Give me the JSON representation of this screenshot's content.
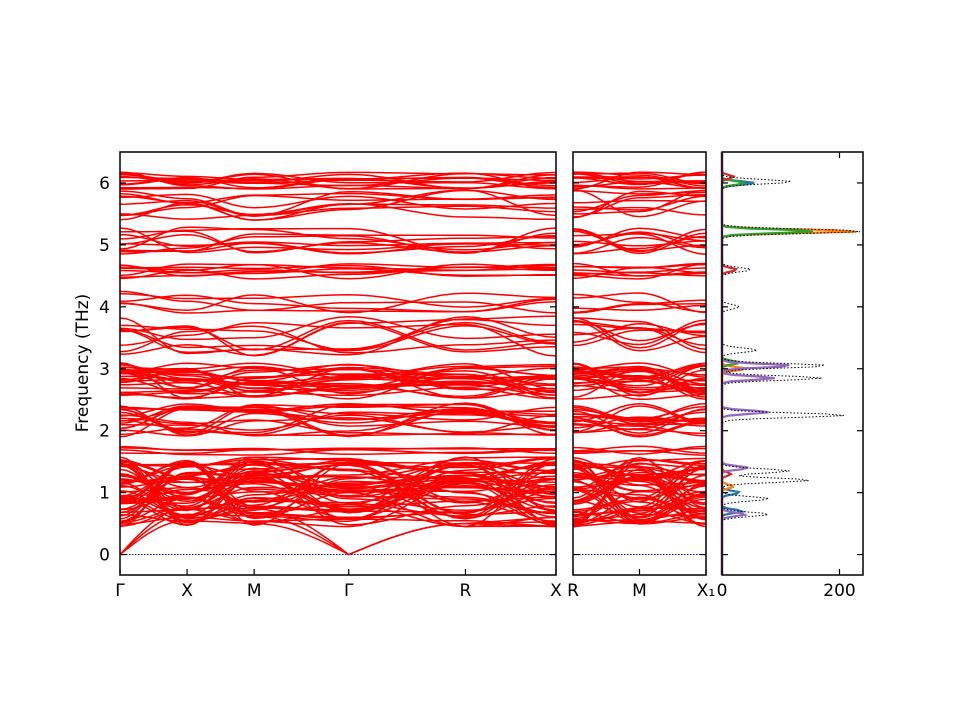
{
  "chart_data": {
    "type": "line",
    "title": "",
    "ylabel": "Frequency (THz)",
    "ylim": [
      -0.33,
      6.5
    ],
    "yticks": [
      "0",
      "1",
      "2",
      "3",
      "4",
      "5",
      "6"
    ],
    "panels": [
      {
        "name": "band-panel-1",
        "kind": "phonon_band_structure",
        "qpoints": [
          "Γ",
          "X",
          "M",
          "Γ",
          "R",
          "X"
        ],
        "qpoint_positions": [
          0.0,
          1.0,
          2.0,
          3.41,
          5.15,
          6.5
        ],
        "band_color": "#ff0000",
        "zero_line_color": "#0000cc"
      },
      {
        "name": "band-panel-2",
        "kind": "phonon_band_structure",
        "qpoints": [
          "R",
          "M",
          "X₁"
        ],
        "qpoint_positions": [
          0.0,
          1.0,
          2.0
        ],
        "band_color": "#ff0000",
        "zero_line_color": "#0000cc"
      }
    ],
    "dos": {
      "name": "partial-dos",
      "kind": "density_of_states",
      "xlim": [
        0,
        240
      ],
      "xticks": [
        "0",
        "200"
      ],
      "total_style": "dotted black",
      "total_peaks": [
        {
          "freq": 6.02,
          "height": 120
        },
        {
          "freq": 5.22,
          "height": 240
        },
        {
          "freq": 4.6,
          "height": 50
        },
        {
          "freq": 4.0,
          "height": 30
        },
        {
          "freq": 3.3,
          "height": 60
        },
        {
          "freq": 3.05,
          "height": 180
        },
        {
          "freq": 2.85,
          "height": 170
        },
        {
          "freq": 2.25,
          "height": 210
        },
        {
          "freq": 1.35,
          "height": 115
        },
        {
          "freq": 1.2,
          "height": 150
        },
        {
          "freq": 0.9,
          "height": 80
        },
        {
          "freq": 0.65,
          "height": 80
        }
      ],
      "partials": [
        {
          "color": "#1f77b4",
          "peaks": [
            {
              "freq": 6.0,
              "height": 55
            },
            {
              "freq": 1.0,
              "height": 30
            },
            {
              "freq": 0.7,
              "height": 35
            }
          ]
        },
        {
          "color": "#ff7f0e",
          "peaks": [
            {
              "freq": 5.22,
              "height": 235
            },
            {
              "freq": 3.0,
              "height": 40
            },
            {
              "freq": 1.1,
              "height": 20
            }
          ]
        },
        {
          "color": "#2ca02c",
          "peaks": [
            {
              "freq": 5.22,
              "height": 160
            },
            {
              "freq": 6.0,
              "height": 40
            },
            {
              "freq": 3.1,
              "height": 30
            }
          ]
        },
        {
          "color": "#d62728",
          "peaks": [
            {
              "freq": 6.1,
              "height": 20
            },
            {
              "freq": 4.6,
              "height": 25
            },
            {
              "freq": 1.3,
              "height": 15
            }
          ]
        },
        {
          "color": "#9467bd",
          "peaks": [
            {
              "freq": 3.05,
              "height": 120
            },
            {
              "freq": 2.85,
              "height": 90
            },
            {
              "freq": 2.3,
              "height": 80
            },
            {
              "freq": 1.4,
              "height": 45
            },
            {
              "freq": 0.65,
              "height": 40
            }
          ]
        }
      ]
    }
  }
}
